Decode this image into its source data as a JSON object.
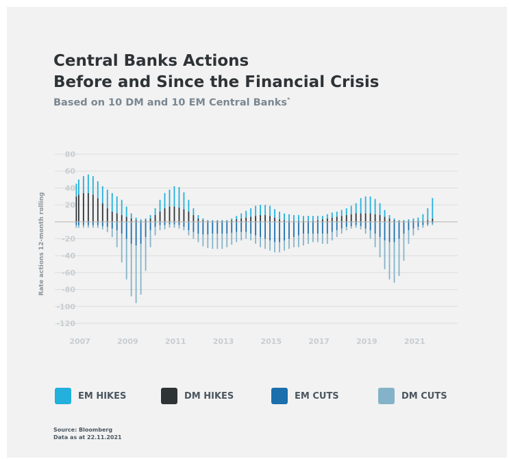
{
  "title_line1": "Central Banks Actions",
  "title_line2": "Before and Since the Financial Crisis",
  "subtitle": "Based on 10 DM and 10 EM Central Banks",
  "subtitle_mark": "*",
  "source_line1": "Source: Bloomberg",
  "source_line2": "Data as at 22.11.2021",
  "colors": {
    "em_hikes": "#22b0dc",
    "dm_hikes": "#2e3336",
    "em_cuts": "#1b6fad",
    "dm_cuts": "#84b3c9",
    "grid": "#dcdcdc",
    "zero_line": "#b8b8b8"
  },
  "legend": [
    {
      "label": "EM HIKES",
      "color": "#22b0dc"
    },
    {
      "label": "DM HIKES",
      "color": "#2e3336"
    },
    {
      "label": "EM CUTS",
      "color": "#1b6fad"
    },
    {
      "label": "DM CUTS",
      "color": "#84b3c9"
    }
  ],
  "chart_data": {
    "type": "bar",
    "title": "Central Banks Actions Before and Since the Financial Crisis",
    "subtitle": "Based on 10 DM and 10 EM Central Banks*",
    "ylabel": "Rate actions 12-month rolling",
    "xlabel": "",
    "ylim": [
      -120,
      80
    ],
    "yticks": [
      80,
      60,
      40,
      20,
      -20,
      -40,
      -60,
      -80,
      -100,
      -120
    ],
    "xlim": [
      2006.0,
      2022.85
    ],
    "xticks": [
      2007,
      2009,
      2011,
      2013,
      2015,
      2017,
      2019,
      2021
    ],
    "grid": true,
    "legend_position": "bottom",
    "stacked": true,
    "series_names": [
      "EM HIKES",
      "DM HIKES",
      "EM CUTS",
      "DM CUTS"
    ],
    "dates": [
      2006.9,
      2007.0,
      2007.2,
      2007.4,
      2007.6,
      2007.8,
      2008.0,
      2008.2,
      2008.4,
      2008.6,
      2008.8,
      2009.0,
      2009.2,
      2009.4,
      2009.6,
      2009.8,
      2010.0,
      2010.2,
      2010.4,
      2010.6,
      2010.8,
      2011.0,
      2011.2,
      2011.4,
      2011.6,
      2011.8,
      2012.0,
      2012.2,
      2012.4,
      2012.6,
      2012.8,
      2013.0,
      2013.2,
      2013.4,
      2013.6,
      2013.8,
      2014.0,
      2014.2,
      2014.4,
      2014.6,
      2014.8,
      2015.0,
      2015.2,
      2015.4,
      2015.6,
      2015.8,
      2016.0,
      2016.2,
      2016.4,
      2016.6,
      2016.8,
      2017.0,
      2017.2,
      2017.4,
      2017.6,
      2017.8,
      2018.0,
      2018.2,
      2018.4,
      2018.6,
      2018.8,
      2019.0,
      2019.2,
      2019.4,
      2019.6,
      2019.8,
      2020.0,
      2020.2,
      2020.4,
      2020.6,
      2020.8,
      2021.0,
      2021.2,
      2021.4,
      2021.6,
      2021.8
    ],
    "em_hikes": [
      15,
      18,
      20,
      22,
      22,
      20,
      20,
      22,
      22,
      20,
      18,
      12,
      6,
      3,
      2,
      2,
      4,
      8,
      14,
      18,
      20,
      24,
      24,
      20,
      14,
      8,
      4,
      2,
      1,
      1,
      1,
      1,
      1,
      2,
      4,
      6,
      8,
      10,
      12,
      12,
      12,
      12,
      10,
      9,
      8,
      8,
      7,
      7,
      6,
      6,
      6,
      5,
      4,
      5,
      6,
      6,
      7,
      8,
      10,
      12,
      18,
      20,
      20,
      18,
      14,
      8,
      4,
      2,
      1,
      1,
      2,
      3,
      4,
      8,
      14,
      24
    ],
    "dm_hikes": [
      30,
      32,
      34,
      34,
      32,
      28,
      22,
      16,
      12,
      10,
      8,
      6,
      4,
      2,
      1,
      2,
      4,
      8,
      12,
      16,
      18,
      18,
      17,
      15,
      12,
      8,
      4,
      2,
      1,
      1,
      1,
      1,
      1,
      2,
      3,
      4,
      5,
      6,
      7,
      8,
      8,
      7,
      5,
      3,
      2,
      1,
      1,
      1,
      1,
      1,
      1,
      2,
      3,
      4,
      5,
      6,
      7,
      8,
      9,
      10,
      10,
      10,
      10,
      9,
      8,
      6,
      4,
      2,
      1,
      1,
      1,
      1,
      1,
      1,
      2,
      4
    ],
    "em_cuts": [
      -4,
      -4,
      -4,
      -4,
      -4,
      -4,
      -5,
      -6,
      -8,
      -10,
      -14,
      -20,
      -26,
      -28,
      -26,
      -18,
      -10,
      -6,
      -4,
      -4,
      -3,
      -3,
      -4,
      -6,
      -10,
      -12,
      -14,
      -15,
      -15,
      -14,
      -14,
      -14,
      -14,
      -13,
      -12,
      -12,
      -12,
      -14,
      -16,
      -18,
      -20,
      -22,
      -24,
      -24,
      -22,
      -20,
      -18,
      -16,
      -14,
      -14,
      -14,
      -14,
      -14,
      -14,
      -12,
      -10,
      -8,
      -6,
      -5,
      -4,
      -5,
      -8,
      -10,
      -14,
      -18,
      -22,
      -24,
      -24,
      -20,
      -14,
      -10,
      -8,
      -6,
      -4,
      -3,
      -2
    ],
    "dm_cuts": [
      -3,
      -3,
      -3,
      -3,
      -3,
      -3,
      -4,
      -6,
      -10,
      -20,
      -34,
      -48,
      -62,
      -68,
      -60,
      -40,
      -20,
      -10,
      -6,
      -5,
      -4,
      -4,
      -4,
      -4,
      -6,
      -8,
      -10,
      -14,
      -16,
      -18,
      -18,
      -18,
      -16,
      -14,
      -12,
      -10,
      -8,
      -8,
      -10,
      -12,
      -12,
      -12,
      -12,
      -12,
      -12,
      -12,
      -12,
      -14,
      -14,
      -12,
      -10,
      -10,
      -12,
      -12,
      -10,
      -8,
      -6,
      -4,
      -3,
      -3,
      -4,
      -6,
      -10,
      -16,
      -24,
      -34,
      -44,
      -48,
      -44,
      -32,
      -16,
      -8,
      -4,
      -3,
      -2,
      -2
    ]
  }
}
